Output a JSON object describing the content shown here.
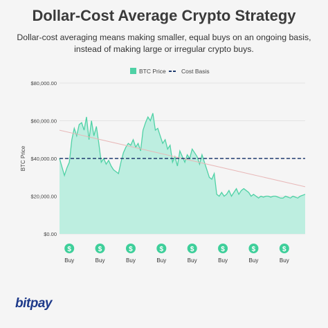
{
  "header": {
    "title": "Dollar-Cost Average Crypto Strategy",
    "subtitle": "Dollar-cost averaging means making smaller, equal buys on an ongoing basis, instead of making large or irregular crypto buys."
  },
  "brand": {
    "logo_text": "bitpay"
  },
  "colors": {
    "area_fill": "#bdeee0",
    "area_line": "#4fd1a5",
    "cost_basis": "#1e3a6e",
    "trend": "#e8b8b8",
    "buy_icon": "#3ecf9a",
    "background": "#f5f5f5"
  },
  "chart_data": {
    "type": "area",
    "title": "",
    "ylabel": "BTC Price",
    "ylim": [
      0,
      80000
    ],
    "y_ticks": [
      "$0.00",
      "$20,000.00",
      "$40,000.00",
      "$60,000.00",
      "$80,000.00"
    ],
    "grid": true,
    "legend_position": "top",
    "series": [
      {
        "name": "BTC Price",
        "kind": "area",
        "x": [
          0,
          2,
          3,
          4,
          5,
          6,
          7,
          8,
          9,
          10,
          11,
          12,
          13,
          14,
          15,
          16,
          17,
          18,
          19,
          20,
          21,
          22,
          23,
          24,
          25,
          26,
          27,
          28,
          29,
          30,
          31,
          32,
          33,
          34,
          35,
          36,
          37,
          38,
          39,
          40,
          41,
          42,
          43,
          44,
          45,
          46,
          47,
          48,
          49,
          50,
          51,
          52,
          53,
          54,
          55,
          56,
          57,
          58,
          59,
          60,
          61,
          62,
          63,
          64,
          65,
          66,
          67,
          68,
          69,
          70,
          71,
          72,
          73,
          74,
          75,
          76,
          77,
          78,
          79,
          80,
          81,
          82,
          83,
          84,
          85,
          86,
          87,
          88,
          89,
          90,
          91,
          92,
          93,
          94,
          95,
          96,
          97,
          98,
          100
        ],
        "y": [
          40000,
          31000,
          35000,
          38000,
          50000,
          56000,
          52000,
          58000,
          59000,
          55000,
          62000,
          50000,
          60000,
          52000,
          57000,
          48000,
          38000,
          40000,
          37000,
          39000,
          36000,
          34000,
          33000,
          32000,
          38000,
          43000,
          46000,
          48000,
          47000,
          50000,
          46000,
          48000,
          44000,
          55000,
          59000,
          62000,
          60000,
          64000,
          55000,
          56000,
          52000,
          48000,
          50000,
          45000,
          47000,
          38000,
          41000,
          36000,
          44000,
          41000,
          38000,
          42000,
          40000,
          45000,
          43000,
          41000,
          37000,
          42000,
          38000,
          34000,
          30000,
          29000,
          32000,
          21000,
          20000,
          22000,
          20000,
          21000,
          23000,
          20000,
          22000,
          24000,
          21000,
          23000,
          24000,
          23000,
          22000,
          20000,
          21000,
          20000,
          19000,
          20000,
          19500,
          20000,
          20000,
          19500,
          20000,
          20000,
          19500,
          19000,
          19000,
          20000,
          19500,
          19000,
          20000,
          19500,
          19000,
          20000,
          21000
        ]
      },
      {
        "name": "Cost Basis",
        "kind": "line",
        "x": [
          0,
          100
        ],
        "y": [
          40000,
          40000
        ]
      },
      {
        "kind": "trend",
        "x": [
          0,
          100
        ],
        "y": [
          55000,
          25000
        ]
      }
    ],
    "buys": {
      "x": [
        4,
        16.5,
        29,
        41.5,
        54,
        66.5,
        79,
        91.5
      ],
      "label": "Buy",
      "icon_symbol": "$"
    }
  }
}
